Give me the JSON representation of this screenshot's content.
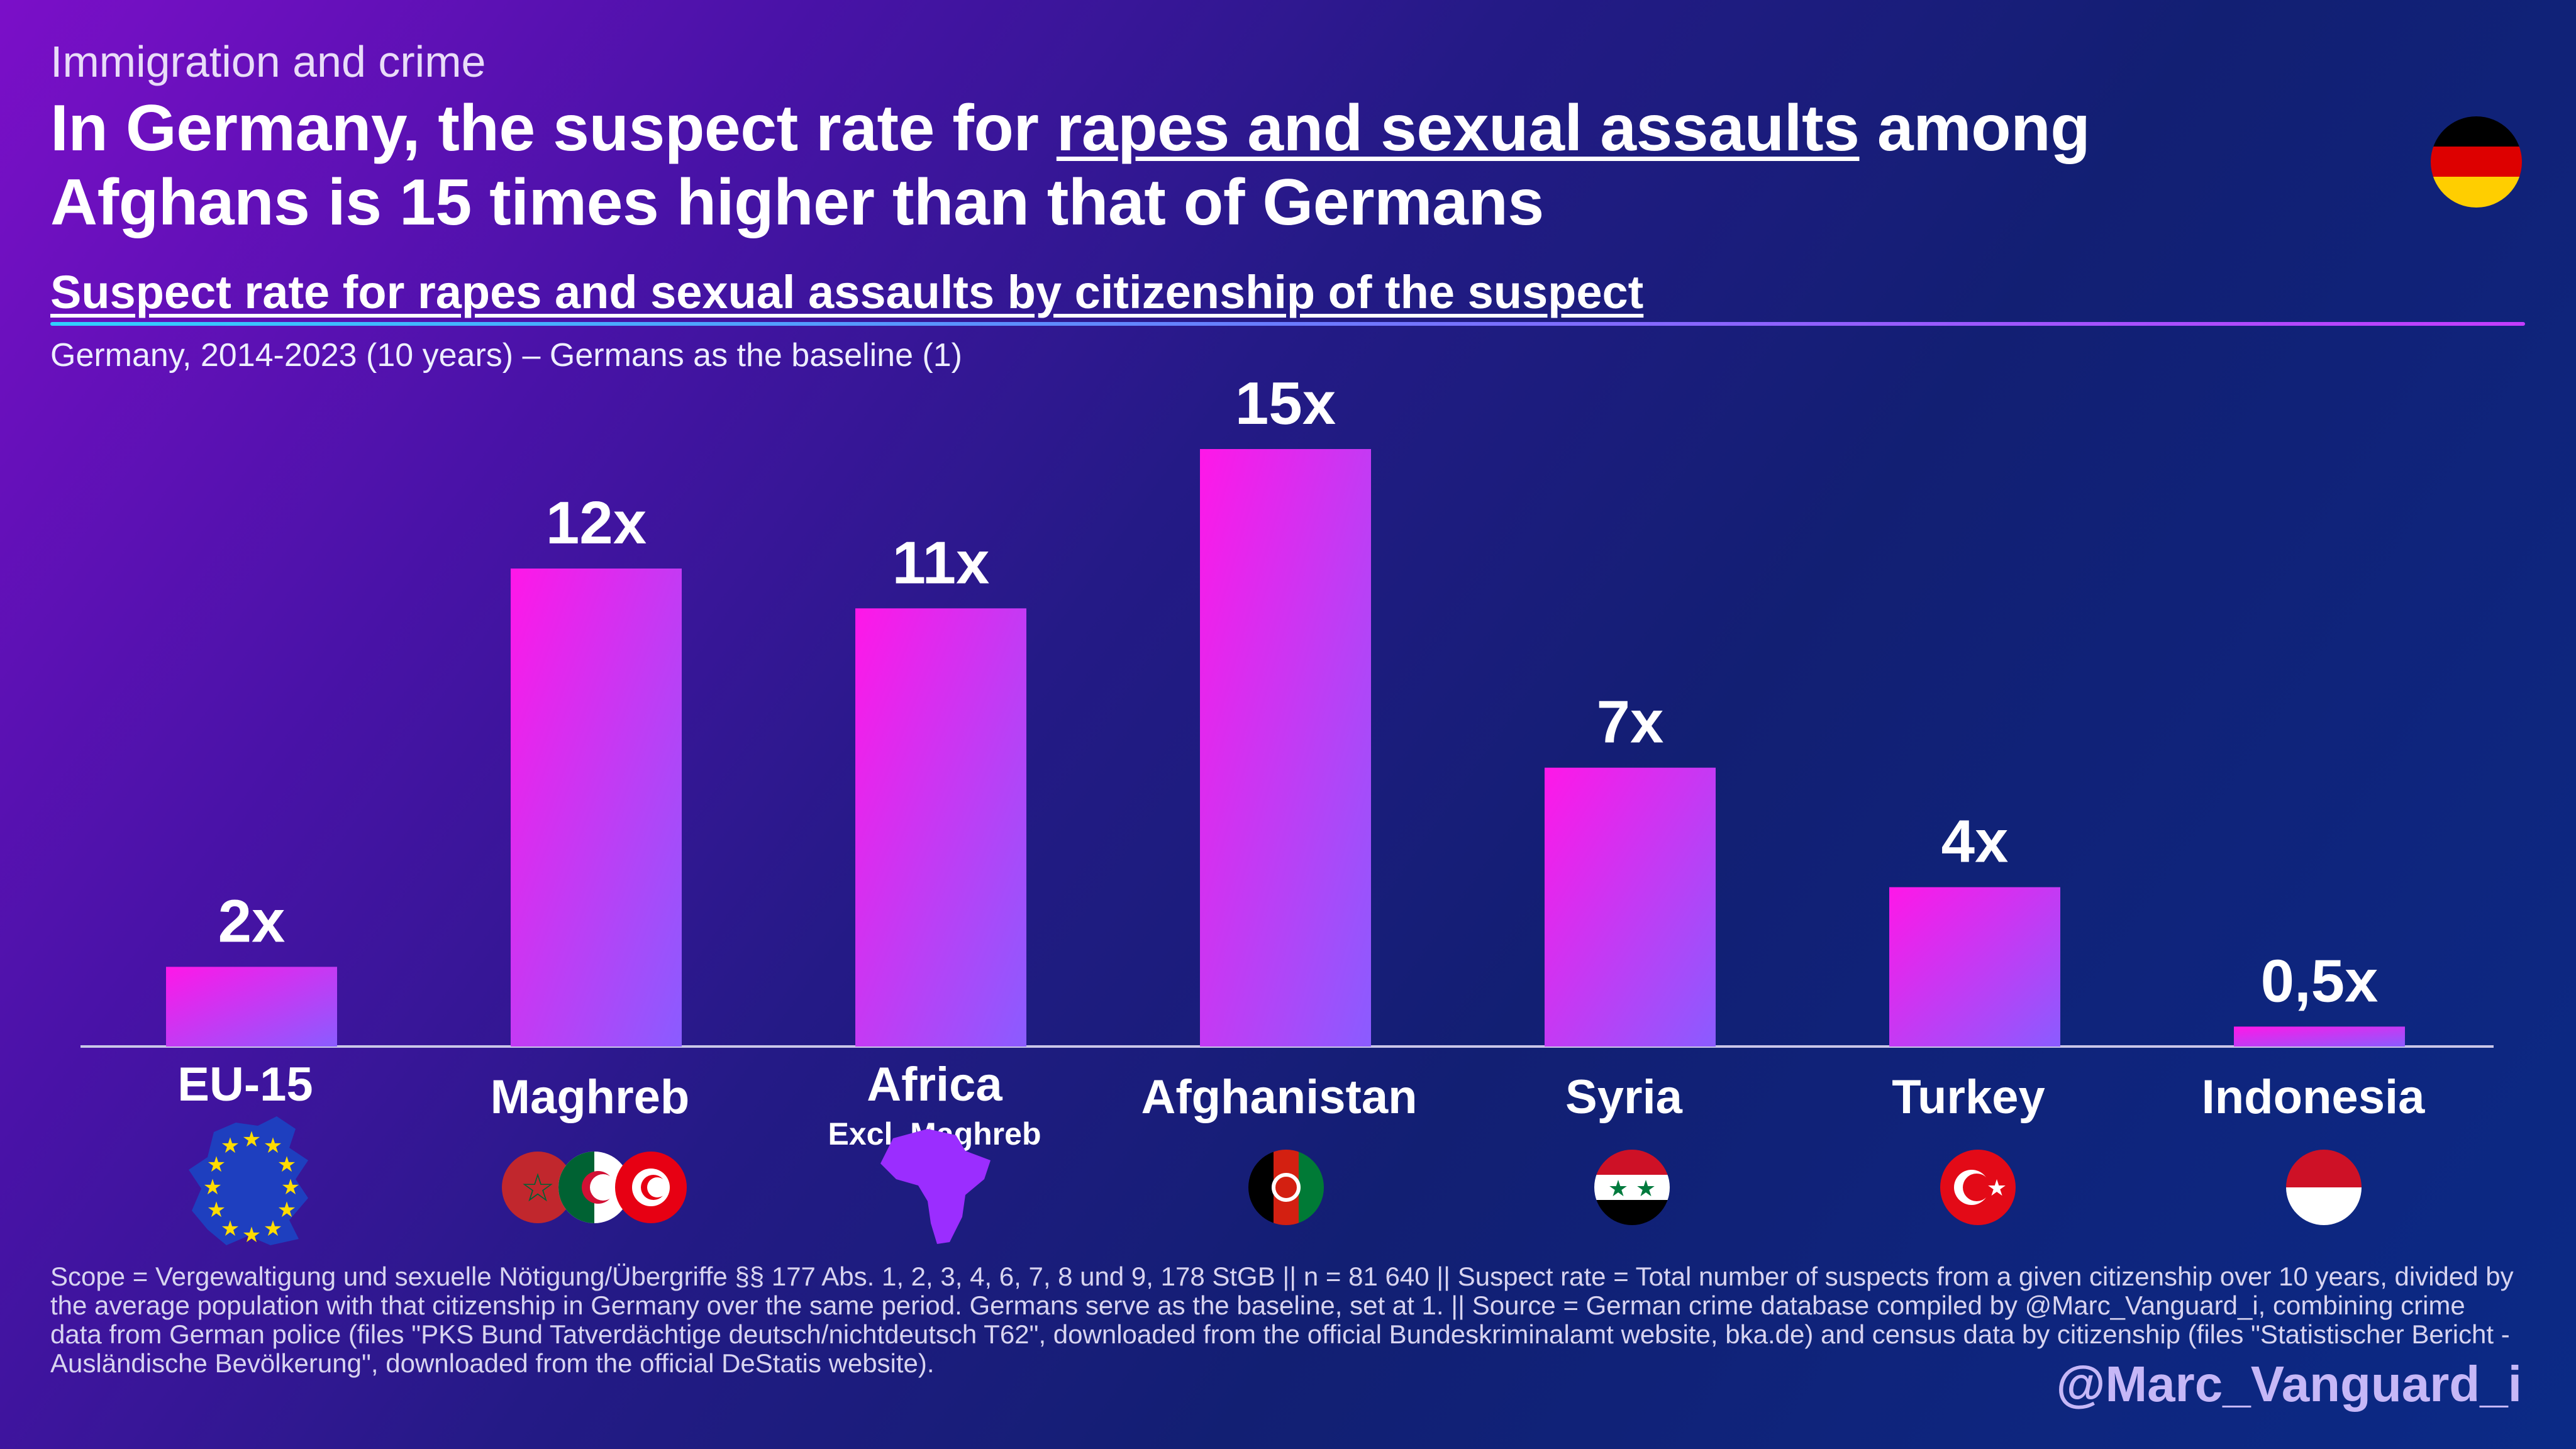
{
  "header": {
    "kicker": "Immigration and crime",
    "headline_part1": "In Germany, the suspect rate for ",
    "headline_underlined": "rapes and sexual assaults",
    "headline_part2": " among",
    "headline_line2": "Afghans is 15 times higher than that of Germans",
    "subtitle": "Suspect rate for rapes and sexual assaults by citizenship of the suspect",
    "note": "Germany, 2014-2023 (10 years) – Germans as the baseline (1)"
  },
  "chart_data": {
    "type": "bar",
    "categories": [
      "EU-15",
      "Maghreb",
      "Africa",
      "Afghanistan",
      "Syria",
      "Turkey",
      "Indonesia"
    ],
    "category_sublabels": [
      "",
      "",
      "Excl. Maghreb",
      "",
      "",
      "",
      ""
    ],
    "values": [
      2,
      12,
      11,
      15,
      7,
      4,
      0.5
    ],
    "value_labels": [
      "2x",
      "12x",
      "11x",
      "15x",
      "7x",
      "4x",
      "0,5x"
    ],
    "ylim": [
      0,
      15
    ],
    "grid": false
  },
  "flags": [
    "eu-flag-icon",
    "maghreb-flags-icon",
    "africa-map-icon",
    "afghanistan-flag-icon",
    "syria-flag-icon",
    "turkey-flag-icon",
    "indonesia-flag-icon"
  ],
  "footer": {
    "footnote": "Scope = Vergewaltigung und sexuelle Nötigung/Übergriffe §§ 177 Abs. 1, 2, 3, 4, 6, 7, 8 und 9, 178 StGB || n = 81 640 || Suspect rate = Total number of suspects from a given citizenship over 10 years, divided by the average population with that citizenship in Germany over the same period. Germans serve as the baseline, set at 1. || Source = German crime database compiled by @Marc_Vanguard_i, combining crime data from German police (files \"PKS Bund Tatverdächtige deutsch/nichtdeutsch T62\", downloaded from the official Bundeskriminalamt website, bka.de) and census data by citizenship (files \"Statistischer Bericht - Ausländische Bevölkerung\", downloaded from the official DeStatis website).",
    "handle": "@Marc_Vanguard_i"
  },
  "colors": {
    "bar_top": "#ff17e8",
    "bar_bottom": "#8a5cff",
    "rule": "#6a7bff"
  }
}
